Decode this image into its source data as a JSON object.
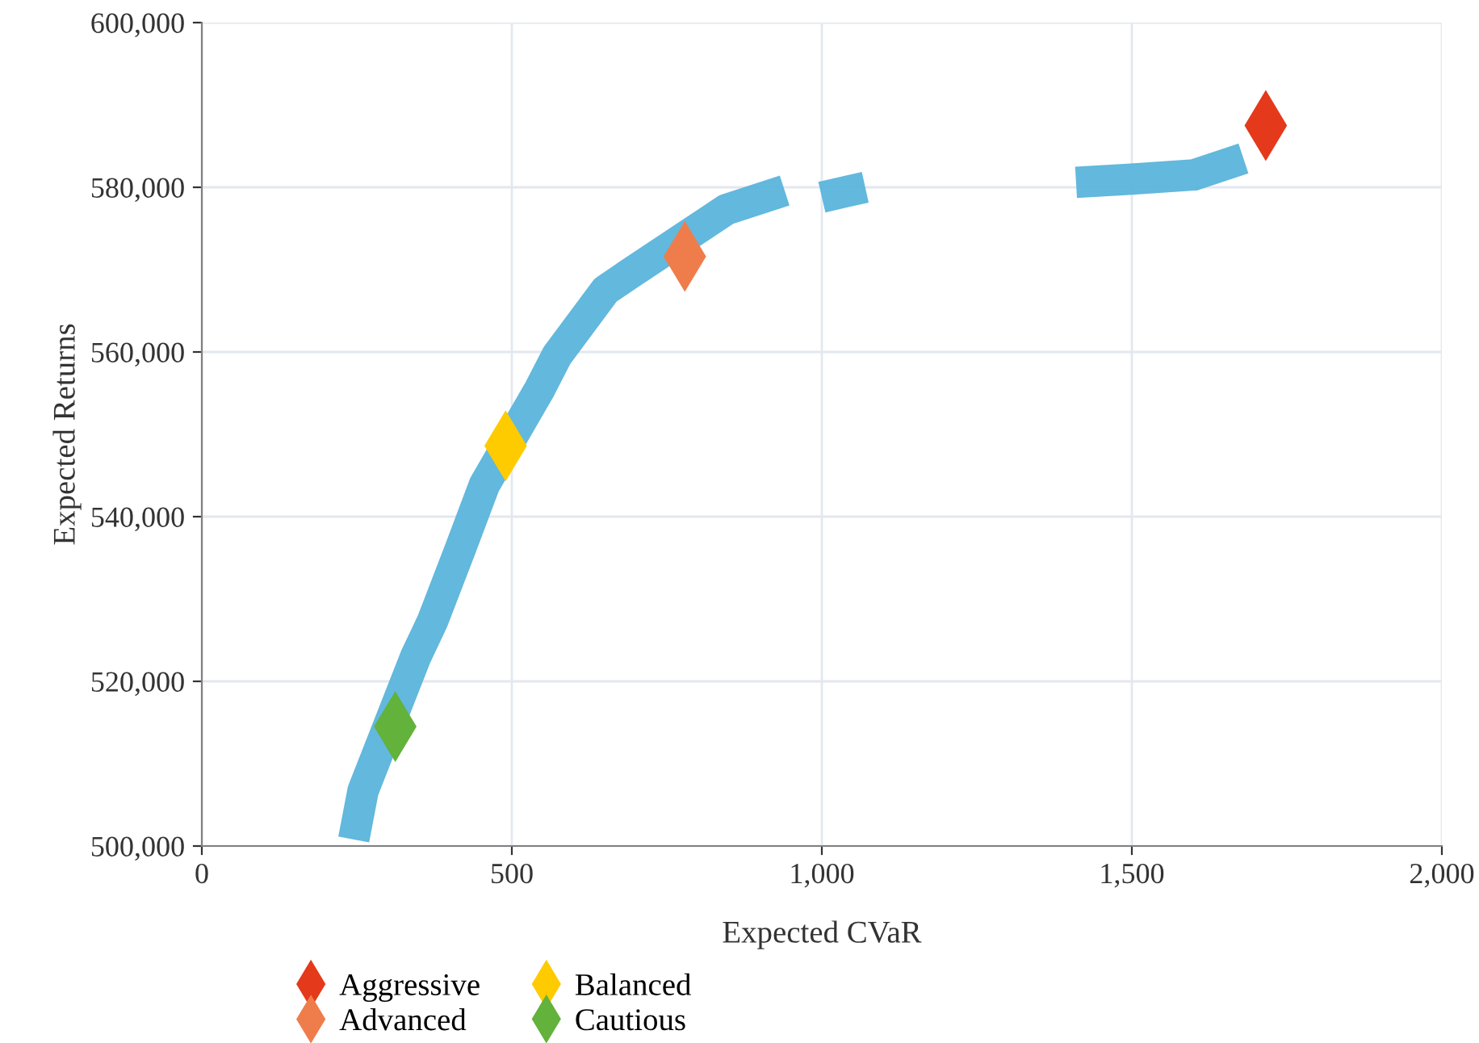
{
  "chart_data": {
    "type": "line",
    "xlabel": "Expected CVaR",
    "ylabel": "Expected Returns",
    "xlim": [
      0,
      2000
    ],
    "ylim": [
      500000,
      600000
    ],
    "xticks": [
      0,
      500,
      {
        "value": 1000,
        "label": "1,000"
      },
      {
        "value": 1500,
        "label": "1,500"
      },
      {
        "value": 2000,
        "label": "2,000"
      }
    ],
    "yticks": [
      {
        "value": 500000,
        "label": "500,000"
      },
      {
        "value": 520000,
        "label": "520,000"
      },
      {
        "value": 540000,
        "label": "540,000"
      },
      {
        "value": 560000,
        "label": "560,000"
      },
      {
        "value": 580000,
        "label": "580,000"
      },
      {
        "value": 600000,
        "label": "600,000"
      }
    ],
    "grid": true,
    "legend": "bottom",
    "series": [
      {
        "color": "#5ab4db",
        "x": [
          245,
          260,
          345,
          372,
          417,
          456,
          545,
          573,
          651,
          690,
          846,
          940,
          970,
          1000,
          1040,
          1070,
          1240,
          1410,
          1500,
          1600,
          1680
        ],
        "values": [
          500800,
          506700,
          523000,
          527300,
          536100,
          543900,
          555500,
          559600,
          567500,
          569500,
          577300,
          579600,
          null,
          578800,
          579500,
          580000,
          null,
          580600,
          581000,
          581500,
          583500
        ]
      },
      {
        "type": "scatter",
        "name": "Aggressive",
        "color": "#e5391b",
        "marker": "diamond",
        "x": [
          1716
        ],
        "values": [
          587500
        ]
      },
      {
        "type": "scatter",
        "name": "Advanced",
        "color": "#ef7d4c",
        "marker": "diamond",
        "x": [
          779
        ],
        "values": [
          571600
        ]
      },
      {
        "type": "scatter",
        "name": "Balanced",
        "color": "#fecb00",
        "marker": "diamond",
        "x": [
          490
        ],
        "values": [
          548600
        ]
      },
      {
        "type": "scatter",
        "name": "Cautious",
        "color": "#62b23b",
        "marker": "diamond",
        "x": [
          312
        ],
        "values": [
          514500
        ]
      }
    ]
  }
}
